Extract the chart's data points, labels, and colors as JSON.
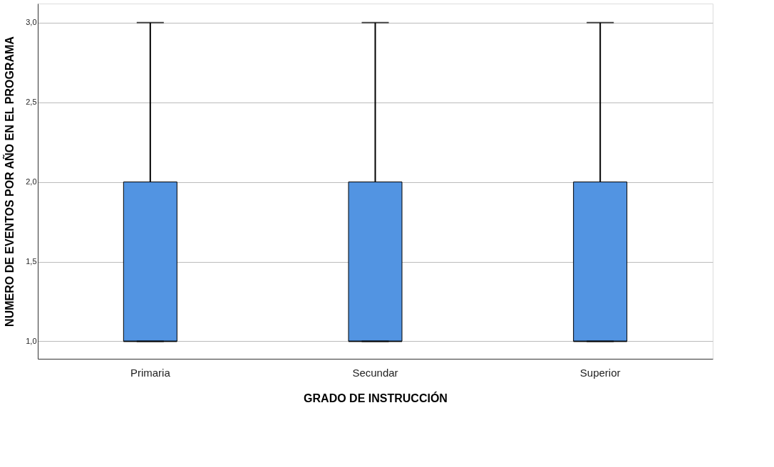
{
  "chart_data": {
    "type": "box",
    "xlabel": "GRADO DE INSTRUCCIÓN",
    "ylabel": "NUMERO DE EVENTOS POR AÑO EN EL PROGRAMA",
    "categories": [
      "Primaria",
      "Secundar",
      "Superior"
    ],
    "series": [
      {
        "color": "#5294e2",
        "boxes": [
          {
            "low": 1,
            "q1": 1,
            "median": 1,
            "q3": 2,
            "high": 3
          },
          {
            "low": 1,
            "q1": 1,
            "median": 1,
            "q3": 2,
            "high": 3
          },
          {
            "low": 1,
            "q1": 1,
            "median": 1,
            "q3": 2,
            "high": 3
          }
        ]
      }
    ],
    "ylim": [
      0.89,
      3.12
    ],
    "yticks": [
      {
        "value": 1,
        "label": "1,0"
      },
      {
        "value": 1.5,
        "label": "1,5"
      },
      {
        "value": 2,
        "label": "2,0"
      },
      {
        "value": 2.5,
        "label": "2,5"
      },
      {
        "value": 3,
        "label": "3,0"
      }
    ],
    "grid": "y"
  }
}
